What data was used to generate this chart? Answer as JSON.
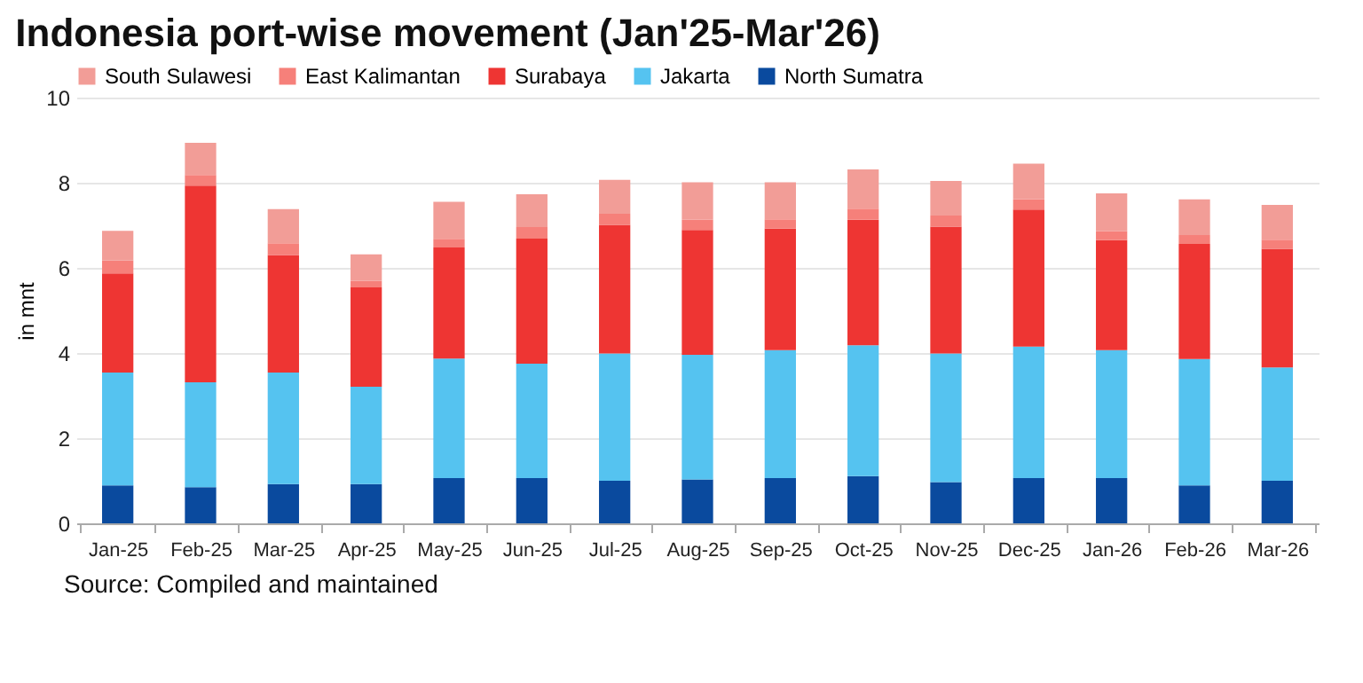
{
  "chart_data": {
    "type": "bar",
    "title": "Indonesia port-wise movement (Jan'25-Mar'26)",
    "ylabel": "in mnt",
    "stacked": true,
    "legend": "top left",
    "grid": "y",
    "categories": [
      "Jan-25",
      "Feb-25",
      "Mar-25",
      "Apr-25",
      "May-25",
      "Jun-25",
      "Jul-25",
      "Aug-25",
      "Sep-25",
      "Oct-25",
      "Nov-25",
      "Dec-25",
      "Jan-26",
      "Feb-26",
      "Mar-26"
    ],
    "series": [
      {
        "name": "North Sumatra",
        "color": "#0a4a9e",
        "values": [
          0.89,
          0.85,
          0.92,
          0.92,
          1.06,
          1.06,
          1.0,
          1.03,
          1.06,
          1.11,
          0.97,
          1.06,
          1.06,
          0.89,
          1.0
        ]
      },
      {
        "name": "Jakarta",
        "color": "#55c3f0",
        "values": [
          2.65,
          2.46,
          2.62,
          2.29,
          2.81,
          2.69,
          2.99,
          2.93,
          3.01,
          3.07,
          3.02,
          3.09,
          3.01,
          2.97,
          2.66
        ]
      },
      {
        "name": "Surabaya",
        "color": "#ee3533",
        "values": [
          2.33,
          4.62,
          2.76,
          2.33,
          2.61,
          2.94,
          3.02,
          2.93,
          2.85,
          2.95,
          2.98,
          3.22,
          2.58,
          2.7,
          2.79
        ]
      },
      {
        "name": "East Kalimantan",
        "color": "#f6807a",
        "values": [
          0.3,
          0.25,
          0.28,
          0.16,
          0.2,
          0.27,
          0.26,
          0.24,
          0.22,
          0.26,
          0.26,
          0.24,
          0.21,
          0.21,
          0.21
        ]
      },
      {
        "name": "South Sulawesi",
        "color": "#f29d97",
        "values": [
          0.7,
          0.76,
          0.8,
          0.62,
          0.87,
          0.77,
          0.8,
          0.88,
          0.87,
          0.92,
          0.81,
          0.84,
          0.89,
          0.84,
          0.82
        ]
      }
    ],
    "ylim": [
      0,
      10
    ],
    "yticks": [
      0,
      2,
      4,
      6,
      8,
      10
    ],
    "annotations": [
      "Source: Compiled and maintained"
    ]
  }
}
